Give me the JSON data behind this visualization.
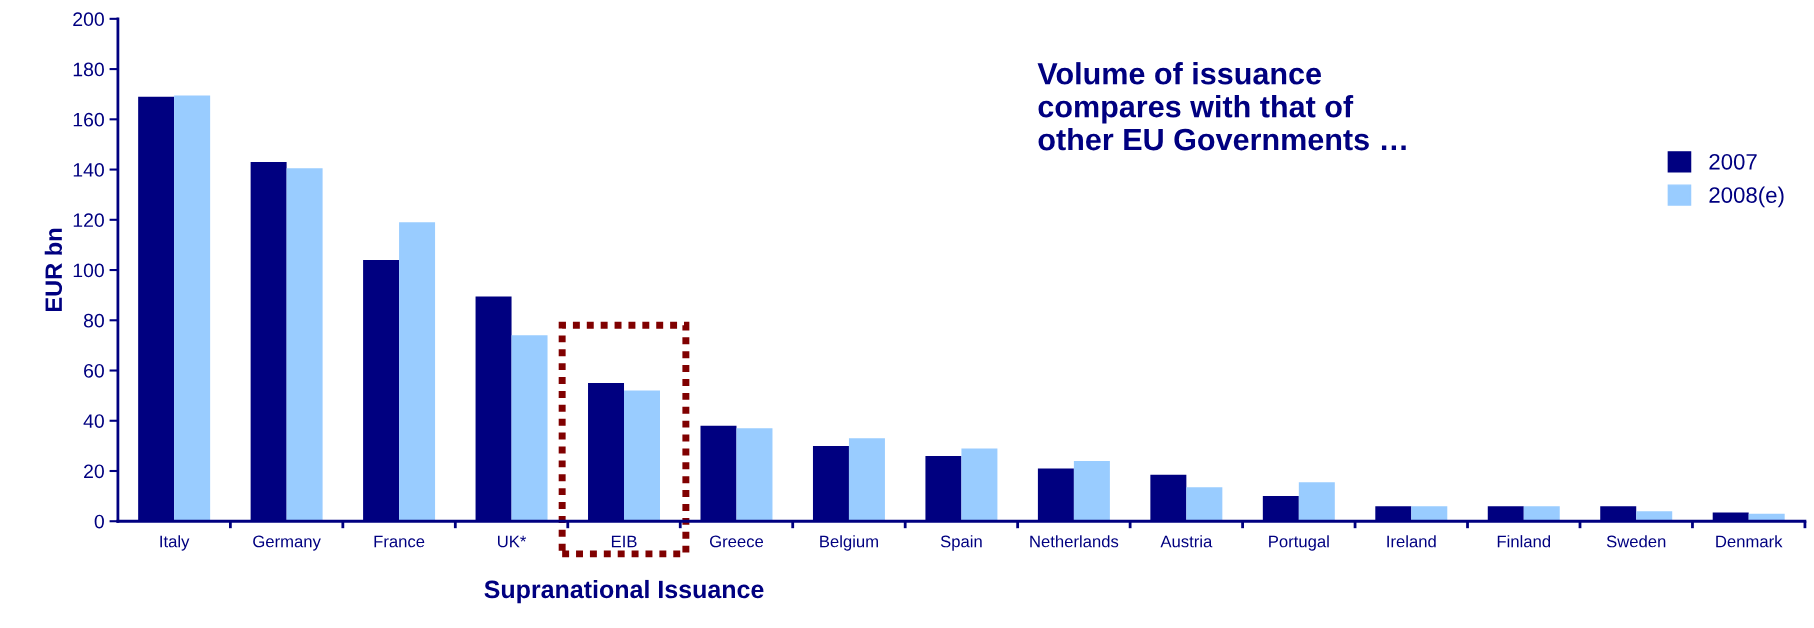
{
  "chart_data": {
    "type": "bar",
    "ylabel": "EUR bn",
    "categories": [
      "Italy",
      "Germany",
      "France",
      "UK*",
      "EIB",
      "Greece",
      "Belgium",
      "Spain",
      "Netherlands",
      "Austria",
      "Portugal",
      "Ireland",
      "Finland",
      "Sweden",
      "Denmark"
    ],
    "series": [
      {
        "name": "2007",
        "color": "#000080",
        "values": [
          169,
          143,
          104,
          89.5,
          55,
          38,
          30,
          26,
          21,
          18.5,
          10,
          6,
          6,
          6,
          3.5
        ]
      },
      {
        "name": "2008(e)",
        "color": "#99ccff",
        "values": [
          169.5,
          140.5,
          119,
          74,
          52,
          37,
          33,
          29,
          24,
          13.5,
          15.5,
          6,
          6,
          4,
          3
        ]
      }
    ],
    "ylim": [
      0,
      200
    ],
    "yticks": [
      0,
      20,
      40,
      60,
      80,
      100,
      120,
      140,
      160,
      180,
      200
    ],
    "grid": false,
    "legend": "right",
    "annotations": [
      "Volume of issuance\ncompares with that of\nother EU Governments …",
      "Supranational Issuance"
    ]
  }
}
